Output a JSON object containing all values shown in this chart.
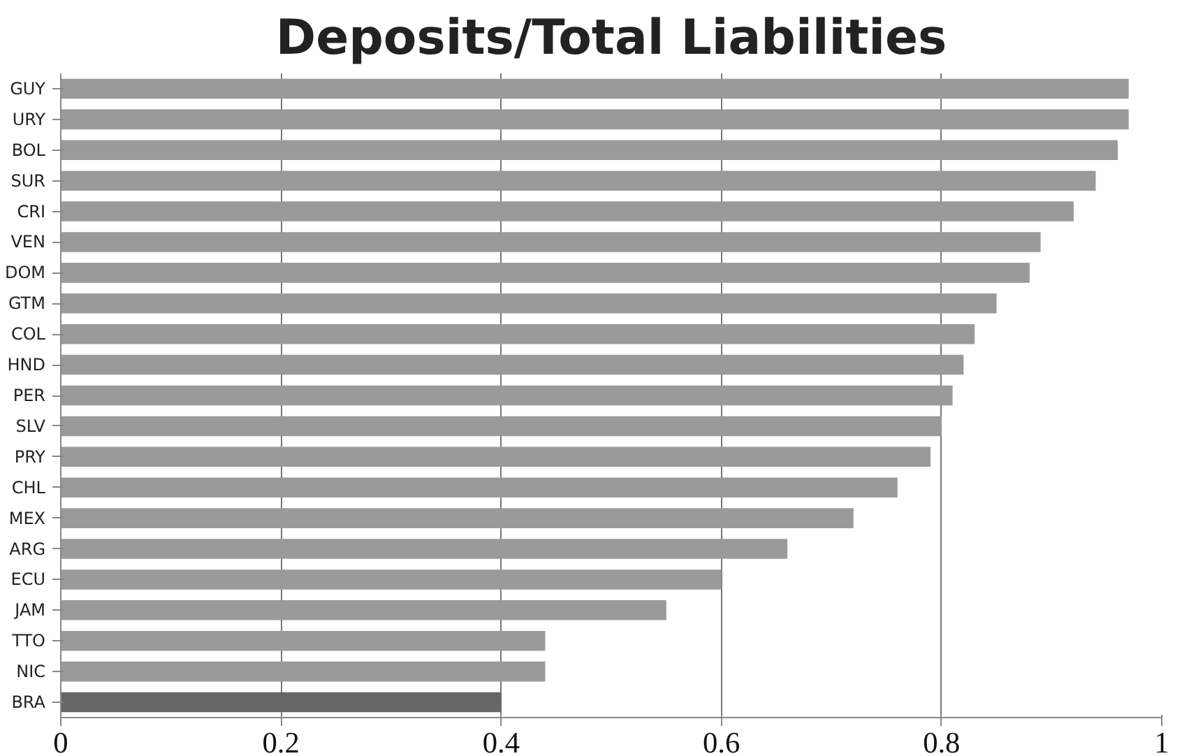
{
  "chart_data": {
    "type": "bar",
    "title": "Deposits/Total Liabilities",
    "orientation": "horizontal",
    "categories": [
      "GUY",
      "URY",
      "BOL",
      "SUR",
      "CRI",
      "VEN",
      "DOM",
      "GTM",
      "COL",
      "HND",
      "PER",
      "SLV",
      "PRY",
      "CHL",
      "MEX",
      "ARG",
      "ECU",
      "JAM",
      "TTO",
      "NIC",
      "BRA"
    ],
    "values": [
      0.97,
      0.97,
      0.96,
      0.94,
      0.92,
      0.89,
      0.88,
      0.85,
      0.83,
      0.82,
      0.81,
      0.8,
      0.79,
      0.76,
      0.72,
      0.66,
      0.6,
      0.55,
      0.44,
      0.44,
      0.4
    ],
    "colors": [
      "#9a9a9a",
      "#9a9a9a",
      "#9a9a9a",
      "#9a9a9a",
      "#9a9a9a",
      "#9a9a9a",
      "#9a9a9a",
      "#9a9a9a",
      "#9a9a9a",
      "#9a9a9a",
      "#9a9a9a",
      "#9a9a9a",
      "#9a9a9a",
      "#9a9a9a",
      "#9a9a9a",
      "#9a9a9a",
      "#9a9a9a",
      "#9a9a9a",
      "#9a9a9a",
      "#9a9a9a",
      "#666666"
    ],
    "xlim": [
      0,
      1
    ],
    "xticks": [
      0,
      0.2,
      0.4,
      0.6,
      0.8,
      1
    ],
    "grid": "x"
  }
}
